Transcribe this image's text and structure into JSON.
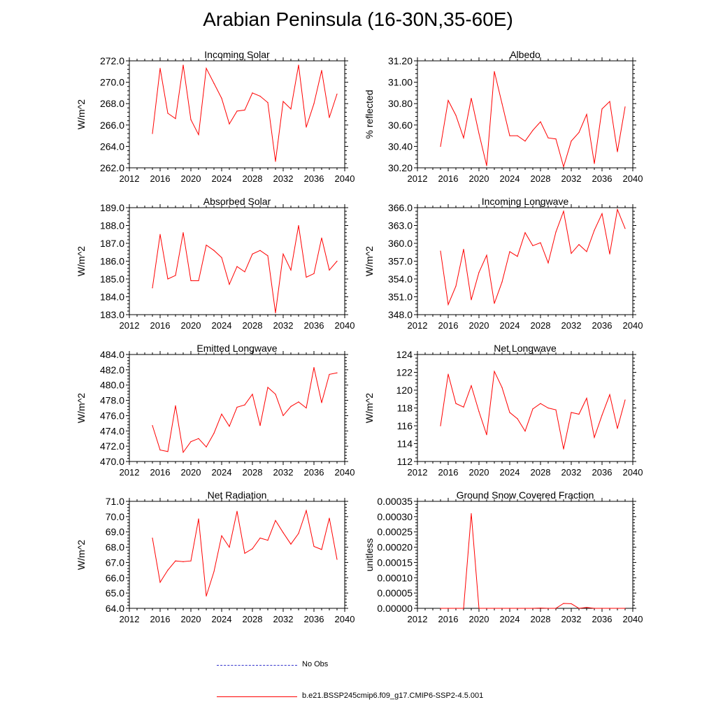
{
  "title": "Arabian Peninsula (16-30N,35-60E)",
  "series_color": "#ff0000",
  "obs_color": "#3333cc",
  "legend": {
    "obs_label": "No Obs",
    "model_label": "b.e21.BSSP245cmip6.f09_g17.CMIP6-SSP2-4.5.001"
  },
  "chart_data": [
    {
      "type": "line",
      "title": "Incoming Solar",
      "ylabel": "W/m^2",
      "xlim": [
        2012,
        2040
      ],
      "ylim": [
        262,
        272
      ],
      "xticks": [
        2012,
        2016,
        2020,
        2024,
        2028,
        2032,
        2036,
        2040
      ],
      "xtick_labels": [
        "2012",
        "2016",
        "2020",
        "2024",
        "2028",
        "2032",
        "2036",
        "2040"
      ],
      "yticks": [
        262,
        264,
        266,
        268,
        270,
        272
      ],
      "ytick_labels": [
        "262.0",
        "264.0",
        "266.0",
        "268.0",
        "270.0",
        "272.0"
      ],
      "x": [
        2015,
        2016,
        2017,
        2018,
        2019,
        2020,
        2021,
        2022,
        2023,
        2024,
        2025,
        2026,
        2027,
        2028,
        2029,
        2030,
        2031,
        2032,
        2033,
        2034,
        2035,
        2036,
        2037,
        2038,
        2039
      ],
      "values": [
        265.2,
        271.3,
        267.1,
        266.6,
        271.6,
        266.5,
        265.1,
        271.3,
        269.9,
        268.5,
        266.1,
        267.3,
        267.4,
        269.0,
        268.7,
        268.1,
        262.6,
        268.2,
        267.5,
        271.6,
        265.8,
        268.0,
        271.1,
        266.7,
        268.9
      ]
    },
    {
      "type": "line",
      "title": "Albedo",
      "ylabel": "% reflected",
      "xlim": [
        2012,
        2040
      ],
      "ylim": [
        30.2,
        31.2
      ],
      "xticks": [
        2012,
        2016,
        2020,
        2024,
        2028,
        2032,
        2036,
        2040
      ],
      "xtick_labels": [
        "2012",
        "2016",
        "2020",
        "2024",
        "2028",
        "2032",
        "2036",
        "2040"
      ],
      "yticks": [
        30.2,
        30.4,
        30.6,
        30.8,
        31.0,
        31.2
      ],
      "ytick_labels": [
        "30.20",
        "30.40",
        "30.60",
        "30.80",
        "31.00",
        "31.20"
      ],
      "x": [
        2015,
        2016,
        2017,
        2018,
        2019,
        2020,
        2021,
        2022,
        2023,
        2024,
        2025,
        2026,
        2027,
        2028,
        2029,
        2030,
        2031,
        2032,
        2033,
        2034,
        2035,
        2036,
        2037,
        2038,
        2039
      ],
      "values": [
        30.4,
        30.83,
        30.69,
        30.48,
        30.85,
        30.52,
        30.22,
        31.1,
        30.8,
        30.5,
        30.5,
        30.45,
        30.55,
        30.63,
        30.48,
        30.47,
        30.21,
        30.45,
        30.53,
        30.7,
        30.24,
        30.75,
        30.82,
        30.35,
        30.77
      ]
    },
    {
      "type": "line",
      "title": "Absorbed Solar",
      "ylabel": "W/m^2",
      "xlim": [
        2012,
        2040
      ],
      "ylim": [
        183,
        189
      ],
      "xticks": [
        2012,
        2016,
        2020,
        2024,
        2028,
        2032,
        2036,
        2040
      ],
      "xtick_labels": [
        "2012",
        "2016",
        "2020",
        "2024",
        "2028",
        "2032",
        "2036",
        "2040"
      ],
      "yticks": [
        183,
        184,
        185,
        186,
        187,
        188,
        189
      ],
      "ytick_labels": [
        "183.0",
        "184.0",
        "185.0",
        "186.0",
        "187.0",
        "188.0",
        "189.0"
      ],
      "x": [
        2015,
        2016,
        2017,
        2018,
        2019,
        2020,
        2021,
        2022,
        2023,
        2024,
        2025,
        2026,
        2027,
        2028,
        2029,
        2030,
        2031,
        2032,
        2033,
        2034,
        2035,
        2036,
        2037,
        2038,
        2039
      ],
      "values": [
        184.5,
        187.5,
        185.0,
        185.2,
        187.6,
        184.9,
        184.9,
        186.9,
        186.6,
        186.2,
        184.7,
        185.7,
        185.4,
        186.4,
        186.6,
        186.3,
        183.1,
        186.4,
        185.5,
        188.0,
        185.1,
        185.3,
        187.3,
        185.5,
        186.0
      ]
    },
    {
      "type": "line",
      "title": "Incoming Longwave",
      "ylabel": "W/m^2",
      "xlim": [
        2012,
        2040
      ],
      "ylim": [
        348,
        366
      ],
      "xticks": [
        2012,
        2016,
        2020,
        2024,
        2028,
        2032,
        2036,
        2040
      ],
      "xtick_labels": [
        "2012",
        "2016",
        "2020",
        "2024",
        "2028",
        "2032",
        "2036",
        "2040"
      ],
      "yticks": [
        348,
        351,
        354,
        357,
        360,
        363,
        366
      ],
      "ytick_labels": [
        "348.0",
        "351.0",
        "354.0",
        "357.0",
        "360.0",
        "363.0",
        "366.0"
      ],
      "x": [
        2015,
        2016,
        2017,
        2018,
        2019,
        2020,
        2021,
        2022,
        2023,
        2024,
        2025,
        2026,
        2027,
        2028,
        2029,
        2030,
        2031,
        2032,
        2033,
        2034,
        2035,
        2036,
        2037,
        2038,
        2039
      ],
      "values": [
        358.7,
        349.7,
        352.8,
        359.0,
        350.5,
        355.1,
        358.0,
        349.9,
        353.5,
        358.6,
        357.8,
        361.8,
        359.6,
        360.1,
        356.7,
        361.9,
        365.4,
        358.3,
        359.8,
        358.6,
        362.2,
        365.0,
        358.2,
        365.7,
        362.5
      ]
    },
    {
      "type": "line",
      "title": "Emitted Longwave",
      "ylabel": "W/m^2",
      "xlim": [
        2012,
        2040
      ],
      "ylim": [
        470,
        484
      ],
      "xticks": [
        2012,
        2016,
        2020,
        2024,
        2028,
        2032,
        2036,
        2040
      ],
      "xtick_labels": [
        "2012",
        "2016",
        "2020",
        "2024",
        "2028",
        "2032",
        "2036",
        "2040"
      ],
      "yticks": [
        470,
        472,
        474,
        476,
        478,
        480,
        482,
        484
      ],
      "ytick_labels": [
        "470.0",
        "472.0",
        "474.0",
        "476.0",
        "478.0",
        "480.0",
        "482.0",
        "484.0"
      ],
      "x": [
        2015,
        2016,
        2017,
        2018,
        2019,
        2020,
        2021,
        2022,
        2023,
        2024,
        2025,
        2026,
        2027,
        2028,
        2029,
        2030,
        2031,
        2032,
        2033,
        2034,
        2035,
        2036,
        2037,
        2038,
        2039
      ],
      "values": [
        474.7,
        471.5,
        471.3,
        477.3,
        471.2,
        472.6,
        473.0,
        471.9,
        473.7,
        476.2,
        474.6,
        477.1,
        477.4,
        478.8,
        474.7,
        479.7,
        478.8,
        476.0,
        477.2,
        477.8,
        477.0,
        482.3,
        477.7,
        481.4,
        481.6
      ]
    },
    {
      "type": "line",
      "title": "Net Longwave",
      "ylabel": "W/m^2",
      "xlim": [
        2012,
        2040
      ],
      "ylim": [
        112,
        124
      ],
      "xticks": [
        2012,
        2016,
        2020,
        2024,
        2028,
        2032,
        2036,
        2040
      ],
      "xtick_labels": [
        "2012",
        "2016",
        "2020",
        "2024",
        "2028",
        "2032",
        "2036",
        "2040"
      ],
      "yticks": [
        112,
        114,
        116,
        118,
        120,
        122,
        124
      ],
      "ytick_labels": [
        "112",
        "114",
        "116",
        "118",
        "120",
        "122",
        "124"
      ],
      "x": [
        2015,
        2016,
        2017,
        2018,
        2019,
        2020,
        2021,
        2022,
        2023,
        2024,
        2025,
        2026,
        2027,
        2028,
        2029,
        2030,
        2031,
        2032,
        2033,
        2034,
        2035,
        2036,
        2037,
        2038,
        2039
      ],
      "values": [
        116.0,
        121.8,
        118.5,
        118.1,
        120.5,
        117.6,
        115.0,
        122.1,
        120.3,
        117.5,
        116.8,
        115.4,
        117.9,
        118.5,
        118.0,
        117.8,
        113.4,
        117.5,
        117.3,
        119.1,
        114.7,
        117.2,
        119.5,
        115.7,
        118.9
      ]
    },
    {
      "type": "line",
      "title": "Net Radiation",
      "ylabel": "W/m^2",
      "xlim": [
        2012,
        2040
      ],
      "ylim": [
        64,
        71
      ],
      "xticks": [
        2012,
        2016,
        2020,
        2024,
        2028,
        2032,
        2036,
        2040
      ],
      "xtick_labels": [
        "2012",
        "2016",
        "2020",
        "2024",
        "2028",
        "2032",
        "2036",
        "2040"
      ],
      "yticks": [
        64,
        65,
        66,
        67,
        68,
        69,
        70,
        71
      ],
      "ytick_labels": [
        "64.0",
        "65.0",
        "66.0",
        "67.0",
        "68.0",
        "69.0",
        "70.0",
        "71.0"
      ],
      "x": [
        2015,
        2016,
        2017,
        2018,
        2019,
        2020,
        2021,
        2022,
        2023,
        2024,
        2025,
        2026,
        2027,
        2028,
        2029,
        2030,
        2031,
        2032,
        2033,
        2034,
        2035,
        2036,
        2037,
        2038,
        2039
      ],
      "values": [
        68.6,
        65.7,
        66.5,
        67.1,
        67.05,
        67.1,
        69.85,
        64.8,
        66.4,
        68.75,
        68.0,
        70.35,
        67.6,
        67.9,
        68.6,
        68.45,
        69.75,
        68.95,
        68.2,
        68.9,
        70.4,
        68.05,
        67.85,
        69.9,
        67.2
      ]
    },
    {
      "type": "line",
      "title": "Ground Snow Covered Fraction",
      "ylabel": "unitless",
      "xlim": [
        2012,
        2040
      ],
      "ylim": [
        0,
        0.00035
      ],
      "xticks": [
        2012,
        2016,
        2020,
        2024,
        2028,
        2032,
        2036,
        2040
      ],
      "xtick_labels": [
        "2012",
        "2016",
        "2020",
        "2024",
        "2028",
        "2032",
        "2036",
        "2040"
      ],
      "yticks": [
        0,
        5e-05,
        0.0001,
        0.00015,
        0.0002,
        0.00025,
        0.0003,
        0.00035
      ],
      "ytick_labels": [
        "0.00000",
        "0.00005",
        "0.00010",
        "0.00015",
        "0.00020",
        "0.00025",
        "0.00030",
        "0.00035"
      ],
      "x": [
        2015,
        2016,
        2017,
        2018,
        2019,
        2020,
        2021,
        2022,
        2023,
        2024,
        2025,
        2026,
        2027,
        2028,
        2029,
        2030,
        2031,
        2032,
        2033,
        2034,
        2035,
        2036,
        2037,
        2038,
        2039
      ],
      "values": [
        0,
        0,
        0,
        0,
        0.00031,
        0,
        0,
        0,
        0,
        0,
        0,
        0,
        0,
        1e-06,
        0,
        0,
        1.6e-05,
        1.5e-05,
        0,
        3e-06,
        0,
        0,
        0,
        0,
        0
      ]
    }
  ]
}
